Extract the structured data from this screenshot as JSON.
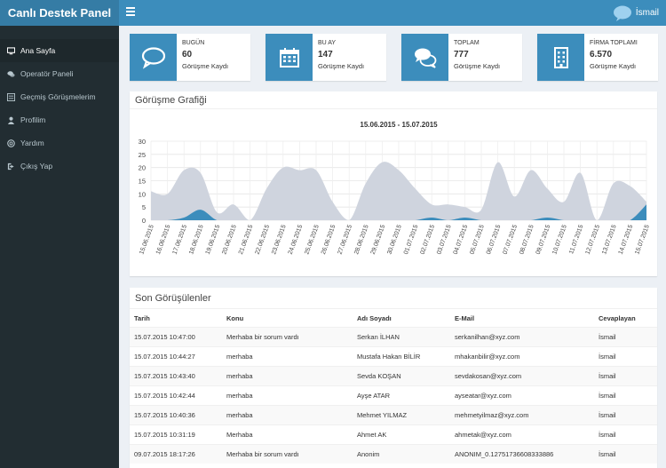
{
  "header": {
    "brand": "Canlı Destek Panel",
    "user_name": "İsmail"
  },
  "sidebar": {
    "items": [
      {
        "label": "Ana Sayfa",
        "icon": "monitor-icon",
        "active": true
      },
      {
        "label": "Operatör Paneli",
        "icon": "chat-icon",
        "active": false
      },
      {
        "label": "Geçmiş Görüşmelerim",
        "icon": "list-icon",
        "active": false
      },
      {
        "label": "Profilim",
        "icon": "user-icon",
        "active": false
      },
      {
        "label": "Yardım",
        "icon": "help-icon",
        "active": false
      },
      {
        "label": "Çıkış Yap",
        "icon": "logout-icon",
        "active": false
      }
    ]
  },
  "stats": [
    {
      "label": "BUGÜN",
      "value": "60",
      "sub": "Görüşme Kaydı",
      "icon": "comment-icon"
    },
    {
      "label": "BU AY",
      "value": "147",
      "sub": "Görüşme Kaydı",
      "icon": "calendar-icon"
    },
    {
      "label": "TOPLAM",
      "value": "777",
      "sub": "Görüşme Kaydı",
      "icon": "comments-icon"
    },
    {
      "label": "FİRMA TOPLAMI",
      "value": "6.570",
      "sub": "Görüşme Kaydı",
      "icon": "building-icon"
    }
  ],
  "chart_panel": {
    "title": "Görüşme Grafiği"
  },
  "chart_data": {
    "type": "area",
    "title": "15.06.2015 - 15.07.2015",
    "ylim": [
      0,
      30
    ],
    "yticks": [
      0,
      5,
      10,
      15,
      20,
      25,
      30
    ],
    "grid": true,
    "colors": {
      "total": "#cfd4de",
      "mine": "#3c8dbc"
    },
    "x": [
      "15.06.2015",
      "16.06.2015",
      "17.06.2015",
      "18.06.2015",
      "19.06.2015",
      "20.06.2015",
      "21.06.2015",
      "22.06.2015",
      "23.06.2015",
      "24.06.2015",
      "25.06.2015",
      "26.06.2015",
      "27.06.2015",
      "28.06.2015",
      "29.06.2015",
      "30.06.2015",
      "01.07.2015",
      "02.07.2015",
      "03.07.2015",
      "04.07.2015",
      "05.07.2015",
      "06.07.2015",
      "07.07.2015",
      "08.07.2015",
      "09.07.2015",
      "10.07.2015",
      "11.07.2015",
      "12.07.2015",
      "13.07.2015",
      "14.07.2015",
      "15.07.2015"
    ],
    "series": [
      {
        "values": [
          11,
          10,
          19,
          18,
          3,
          6,
          0,
          12,
          20,
          19,
          19,
          7,
          0,
          14,
          22,
          19,
          12,
          6,
          6,
          5,
          4,
          22,
          9,
          19,
          12,
          7,
          18,
          0,
          14,
          13,
          7
        ]
      },
      {
        "values": [
          0,
          0,
          1,
          4,
          0,
          0,
          0,
          0,
          0,
          0,
          0,
          0,
          0,
          0,
          0,
          0,
          0,
          1,
          0,
          1,
          0,
          0,
          0,
          0,
          1,
          0,
          0,
          0,
          0,
          0,
          6
        ]
      }
    ]
  },
  "table": {
    "title": "Son Görüşülenler",
    "headers": [
      "Tarih",
      "Konu",
      "Adı Soyadı",
      "E-Mail",
      "Cevaplayan"
    ],
    "rows": [
      [
        "15.07.2015 10:47:00",
        "Merhaba bir sorum vardı",
        "Serkan İLHAN",
        "serkanilhan@xyz.com",
        "İsmail"
      ],
      [
        "15.07.2015 10:44:27",
        "merhaba",
        "Mustafa Hakan BİLİR",
        "mhakanbilir@xyz.com",
        "İsmail"
      ],
      [
        "15.07.2015 10:43:40",
        "merhaba",
        "Sevda KOŞAN",
        "sevdakosan@xyz.com",
        "İsmail"
      ],
      [
        "15.07.2015 10:42:44",
        "merhaba",
        "Ayşe ATAR",
        "ayseatar@xyz.com",
        "İsmail"
      ],
      [
        "15.07.2015 10:40:36",
        "merhaba",
        "Mehmet YILMAZ",
        "mehmetyilmaz@xyz.com",
        "İsmail"
      ],
      [
        "15.07.2015 10:31:19",
        "Merhaba",
        "Ahmet AK",
        "ahmetak@xyz.com",
        "İsmail"
      ],
      [
        "09.07.2015 18:17:26",
        "Merhaba bir sorum vardı",
        "Anonim",
        "ANONIM_0.12751736608333886",
        "İsmail"
      ]
    ]
  }
}
